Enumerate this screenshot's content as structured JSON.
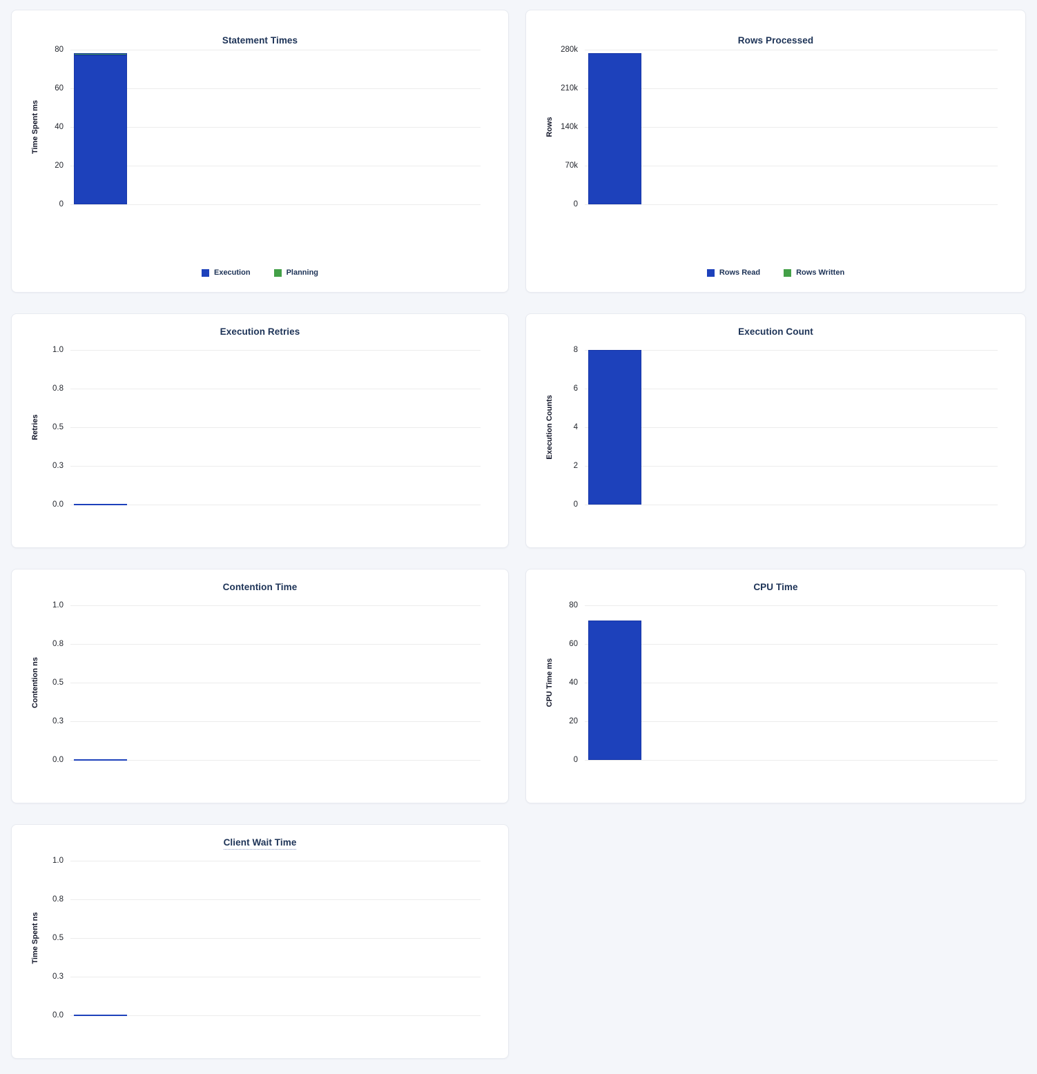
{
  "page": {
    "background_color": "#f4f6fa",
    "card_background": "#ffffff",
    "card_border_color": "#e7eaf0"
  },
  "colors": {
    "bar_blue": "#1d41bb",
    "bar_blue_border": "#1837a8",
    "bar_green": "#43a047",
    "title_text": "#1c3256",
    "tick_text": "#23262d",
    "gridline": "#ececec"
  },
  "chart_data": [
    {
      "type": "bar",
      "title": "Statement Times",
      "ylabel": "Time Spent ms",
      "ytick_labels": [
        "0",
        "20",
        "40",
        "60",
        "80"
      ],
      "ylim": [
        0,
        80
      ],
      "grid": true,
      "stacked": true,
      "legend_position": "bottom",
      "series": [
        {
          "name": "Execution",
          "value": 77,
          "color": "#1d41bb"
        },
        {
          "name": "Planning",
          "value": 1,
          "color": "#43a047"
        }
      ]
    },
    {
      "type": "bar",
      "title": "Rows Processed",
      "ylabel": "Rows",
      "ytick_labels": [
        "0",
        "70k",
        "140k",
        "210k",
        "280k"
      ],
      "ylim": [
        0,
        280000
      ],
      "grid": true,
      "stacked": true,
      "legend_position": "bottom",
      "series": [
        {
          "name": "Rows Read",
          "value": 274000,
          "color": "#1d41bb"
        },
        {
          "name": "Rows Written",
          "value": 0,
          "color": "#43a047"
        }
      ]
    },
    {
      "type": "bar",
      "title": "Execution Retries",
      "ylabel": "Retries",
      "ytick_labels": [
        "0.0",
        "0.3",
        "0.5",
        "0.8",
        "1.0"
      ],
      "ylim": [
        0,
        1
      ],
      "grid": true,
      "stacked": false,
      "legend_position": "none",
      "series": [
        {
          "value": 0,
          "color": "#1d41bb"
        }
      ]
    },
    {
      "type": "bar",
      "title": "Execution Count",
      "ylabel": "Execution Counts",
      "ytick_labels": [
        "0",
        "2",
        "4",
        "6",
        "8"
      ],
      "ylim": [
        0,
        8
      ],
      "grid": true,
      "stacked": false,
      "legend_position": "none",
      "series": [
        {
          "value": 8,
          "color": "#1d41bb"
        }
      ]
    },
    {
      "type": "bar",
      "title": "Contention Time",
      "ylabel": "Contention ns",
      "ytick_labels": [
        "0.0",
        "0.3",
        "0.5",
        "0.8",
        "1.0"
      ],
      "ylim": [
        0,
        1
      ],
      "grid": true,
      "stacked": false,
      "legend_position": "none",
      "series": [
        {
          "value": 0,
          "color": "#1d41bb"
        }
      ]
    },
    {
      "type": "bar",
      "title": "CPU Time",
      "ylabel": "CPU Time ms",
      "ytick_labels": [
        "0",
        "20",
        "40",
        "60",
        "80"
      ],
      "ylim": [
        0,
        80
      ],
      "grid": true,
      "stacked": false,
      "legend_position": "none",
      "series": [
        {
          "value": 72,
          "color": "#1d41bb"
        }
      ]
    },
    {
      "type": "bar",
      "title": "Client Wait Time",
      "title_has_tooltip_underline": true,
      "ylabel": "Time Spent ns",
      "ytick_labels": [
        "0.0",
        "0.3",
        "0.5",
        "0.8",
        "1.0"
      ],
      "ylim": [
        0,
        1
      ],
      "grid": true,
      "stacked": false,
      "legend_position": "none",
      "series": [
        {
          "value": 0,
          "color": "#1d41bb"
        }
      ]
    }
  ]
}
